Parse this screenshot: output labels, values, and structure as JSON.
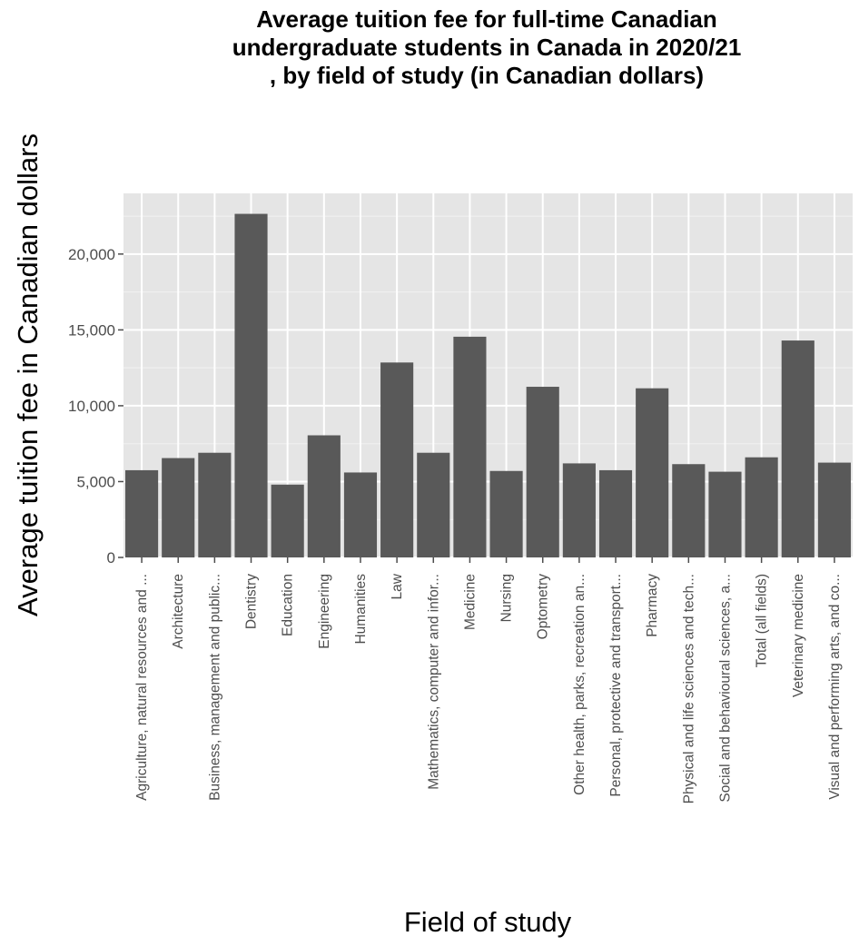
{
  "chart_data": {
    "type": "bar",
    "title_lines": [
      "Average tuition fee for full-time Canadian",
      "undergraduate students in Canada in 2020/21",
      ", by field of study (in Canadian dollars)"
    ],
    "xlabel": "Field of study",
    "ylabel": "Average tuition fee in Canadian dollars",
    "ylim": [
      0,
      24000
    ],
    "yticks": [
      0,
      5000,
      10000,
      15000,
      20000
    ],
    "ytick_labels": [
      "0",
      "5,000",
      "10,000",
      "15,000",
      "20,000"
    ],
    "grid": true,
    "categories": [
      "Agriculture, natural resources and ...",
      "Architecture",
      "Business, management and public...",
      "Dentistry",
      "Education",
      "Engineering",
      "Humanities",
      "Law",
      "Mathematics, computer and infor...",
      "Medicine",
      "Nursing",
      "Optometry",
      "Other health, parks, recreation an...",
      "Personal, protective and transport...",
      "Pharmacy",
      "Physical and life sciences and tech...",
      "Social and behavioural sciences, a...",
      "Total (all fields)",
      "Veterinary medicine",
      "Visual and performing arts, and co..."
    ],
    "values": [
      5750,
      6550,
      6900,
      22650,
      4800,
      8050,
      5600,
      12850,
      6900,
      14550,
      5700,
      11250,
      6200,
      5750,
      11150,
      6150,
      5650,
      6600,
      14300,
      6250
    ],
    "colors": {
      "panel": "#e5e5e5",
      "grid_major": "#ffffff",
      "grid_minor": "#f2f2f2",
      "bar": "#595959",
      "tick": "#4d4d4d"
    }
  }
}
